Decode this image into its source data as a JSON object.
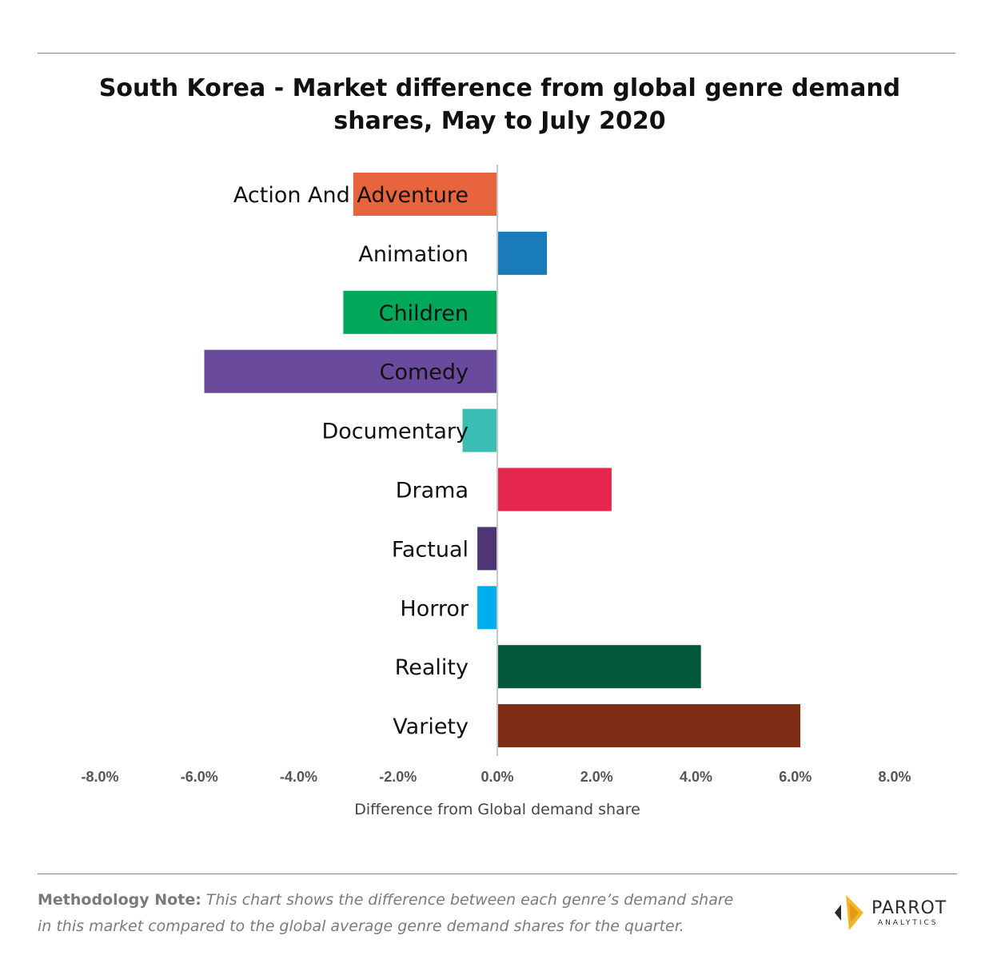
{
  "title": "South Korea - Market difference from global genre demand shares, May to July 2020",
  "chart_data": {
    "type": "bar",
    "orientation": "horizontal",
    "categories": [
      "Action And Adventure",
      "Animation",
      "Children",
      "Comedy",
      "Documentary",
      "Drama",
      "Factual",
      "Horror",
      "Reality",
      "Variety"
    ],
    "values": [
      -2.9,
      1.0,
      -3.1,
      -5.9,
      -0.7,
      2.3,
      -0.4,
      -0.4,
      4.1,
      6.1
    ],
    "colors": [
      "#E8643C",
      "#1A7BBA",
      "#00A85A",
      "#6A4A9C",
      "#3BBFB5",
      "#E5264D",
      "#4E3576",
      "#00AEEF",
      "#03573A",
      "#7E2C14"
    ],
    "xlim": [
      -8,
      8
    ],
    "xticks": [
      -8,
      -6,
      -4,
      -2,
      0,
      2,
      4,
      6,
      8
    ],
    "tick_labels": [
      "-8.0%",
      "-6.0%",
      "-4.0%",
      "-2.0%",
      "0.0%",
      "2.0%",
      "4.0%",
      "6.0%",
      "8.0%"
    ],
    "xlabel": "Difference from Global demand share",
    "ylabel": "",
    "grid": false,
    "legend": "none"
  },
  "footer": {
    "note_lead": "Methodology Note:",
    "note_body": "This chart shows the difference between each genre’s demand share in this market compared to the global average genre demand shares for the quarter.",
    "logo_text": "PARROT",
    "logo_sub": "ANALYTICS"
  },
  "colors": {
    "axis": "#c8c8c8",
    "logo_gold": "#F2B62A"
  }
}
